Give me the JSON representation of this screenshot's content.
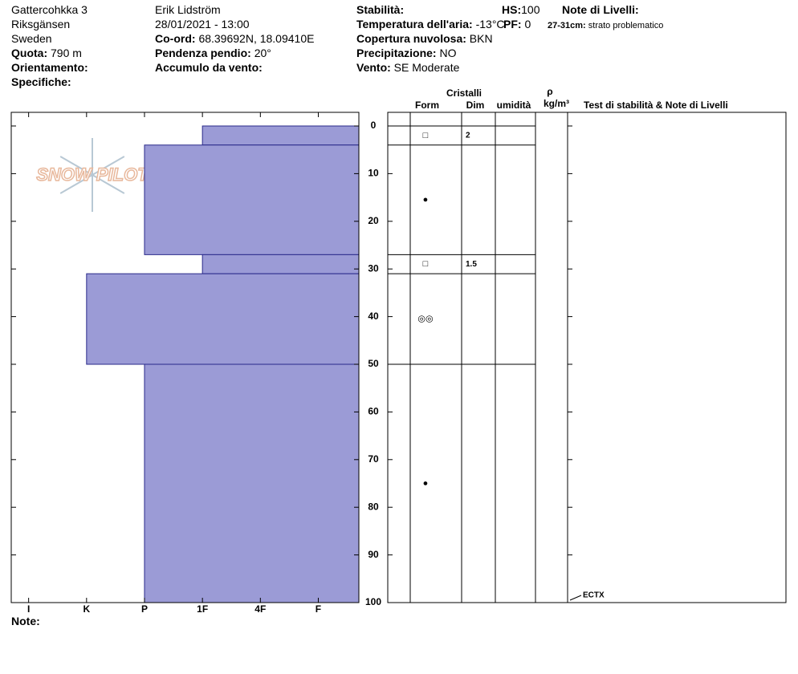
{
  "header": {
    "site": "Gattercohkka 3",
    "area": "Riksgänsen",
    "country": "Sweden",
    "elevation": {
      "label": "Quota:",
      "value": "790 m"
    },
    "aspect": {
      "label": "Orientamento:"
    },
    "specifics": {
      "label": "Specifiche:"
    },
    "observer": "Erik Lidström",
    "datetime": "28/01/2021 - 13:00",
    "coords": {
      "label": "Co-ord:",
      "value": "68.39692N, 18.09410E"
    },
    "slope": {
      "label": "Pendenza pendio:",
      "value": "20°"
    },
    "wind_loading": {
      "label": "Accumulo da vento:"
    },
    "stability": {
      "label": "Stabilità:"
    },
    "air_temp": {
      "label": "Temperatura dell'aria:",
      "value": "-13°C"
    },
    "cloud": {
      "label": "Copertura nuvolosa:",
      "value": "BKN"
    },
    "precip": {
      "label": "Precipitazione:",
      "value": "NO"
    },
    "wind": {
      "label": "Vento:",
      "value": "SE Moderate"
    },
    "hs": {
      "label": "HS:",
      "value": "100"
    },
    "pf": {
      "label": "PF:",
      "value": "0"
    },
    "layer_notes": {
      "label": "Note di Livelli:",
      "items": [
        {
          "range": "27-31cm:",
          "text": "strato problematico"
        }
      ]
    }
  },
  "table_header": {
    "crystals": "Cristalli",
    "form": "Form",
    "size": "Dim",
    "moisture": "umidità",
    "density": "ρ",
    "density_unit": "kg/m³",
    "tests": "Test di stabilità & Note di Livelli"
  },
  "logo": "SNOW PILOT",
  "footer": {
    "note": "Note:"
  },
  "chart_data": {
    "type": "snow-profile",
    "ylim": [
      0,
      100
    ],
    "yticks": [
      0,
      10,
      20,
      30,
      40,
      50,
      60,
      70,
      80,
      90,
      100
    ],
    "xlim": [
      6.3,
      0.3
    ],
    "xticks": [
      {
        "value": 6,
        "label": "I"
      },
      {
        "value": 5,
        "label": "K"
      },
      {
        "value": 4,
        "label": "P"
      },
      {
        "value": 3,
        "label": "1F"
      },
      {
        "value": 2,
        "label": "4F"
      },
      {
        "value": 1,
        "label": "F"
      }
    ],
    "color": "#9b9bd6",
    "layers": [
      {
        "top": 0,
        "bottom": 4,
        "hardness": 3,
        "form": "□",
        "size": "2"
      },
      {
        "top": 4,
        "bottom": 27,
        "hardness": 4,
        "form": "●"
      },
      {
        "top": 27,
        "bottom": 31,
        "hardness": 3,
        "form": "□",
        "size": "1.5"
      },
      {
        "top": 31,
        "bottom": 50,
        "hardness": 5,
        "form": "◎◎"
      },
      {
        "top": 50,
        "bottom": 100,
        "hardness": 4,
        "form": "●"
      }
    ],
    "tests": [
      {
        "depth": 100,
        "result": "ECTX"
      }
    ]
  }
}
